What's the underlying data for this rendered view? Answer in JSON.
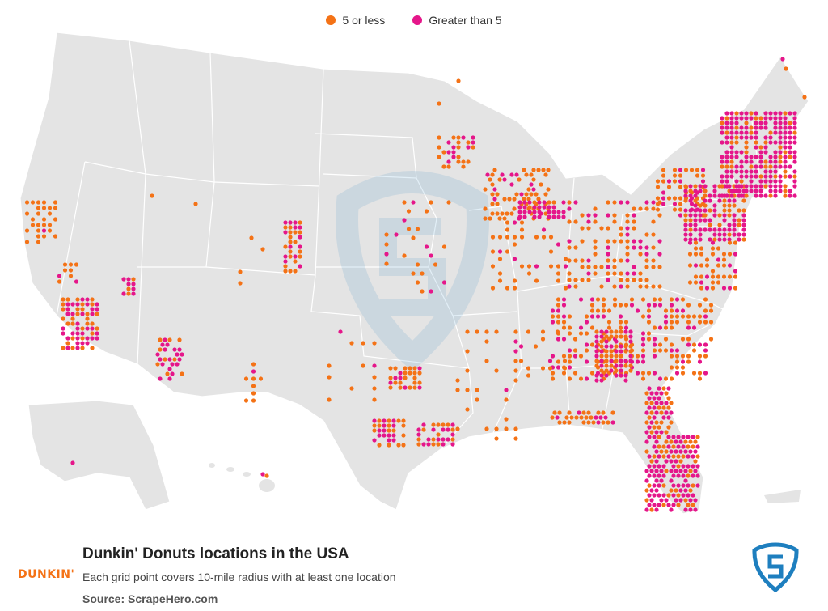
{
  "legend": {
    "items": [
      {
        "label": "5 or less",
        "color": "#f47216"
      },
      {
        "label": "Greater than 5",
        "color": "#e5168a"
      }
    ]
  },
  "title": "Dunkin' Donuts locations in the USA",
  "subtitle": "Each grid point covers 10-mile radius with at least one location",
  "source": "Source: ScrapeHero.com",
  "brand": {
    "text": "DUNKIN'",
    "color": "#f47216"
  },
  "watermark": {
    "name": "scrapehero-shield-icon",
    "color": "#1e7fbf"
  },
  "map": {
    "land_color": "#e4e4e4",
    "border_color": "#ffffff",
    "clusters": [
      {
        "region": "pacific-northwest",
        "level": "low"
      },
      {
        "region": "northern-california",
        "level": "mixed"
      },
      {
        "region": "southern-california",
        "level": "mixed"
      },
      {
        "region": "arizona",
        "level": "mixed"
      },
      {
        "region": "colorado",
        "level": "mixed"
      },
      {
        "region": "texas",
        "level": "mixed"
      },
      {
        "region": "midwest",
        "level": "mixed"
      },
      {
        "region": "southeast",
        "level": "mixed"
      },
      {
        "region": "florida",
        "level": "high"
      },
      {
        "region": "northeast",
        "level": "high"
      }
    ]
  }
}
